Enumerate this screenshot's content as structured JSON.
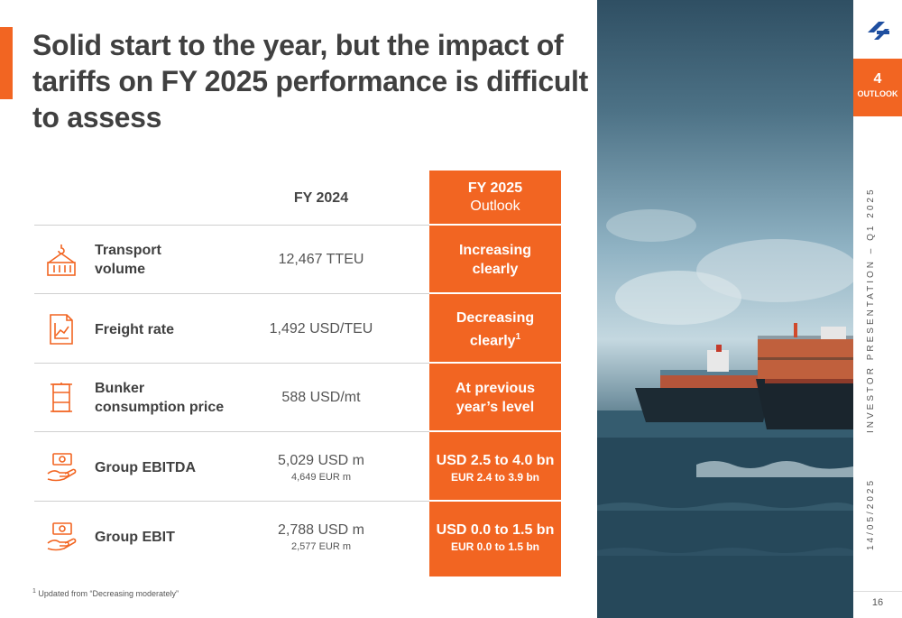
{
  "title": "Solid start to the year, but the impact of tariffs on FY 2025 performance is difficult to assess",
  "columns": {
    "fy24": "FY 2024",
    "fy25_year": "FY 2025",
    "fy25_sub": "Outlook"
  },
  "rows": [
    {
      "label_1": "Transport",
      "label_2": "volume",
      "fy24": "12,467 TTEU",
      "fy24_small": "",
      "out_1": "Increasing",
      "out_2": "clearly",
      "icon": "container-crane-icon"
    },
    {
      "label_1": "Freight rate",
      "label_2": "",
      "fy24": "1,492 USD/TEU",
      "fy24_small": "",
      "out_1": "Decreasing",
      "out_2": "clearly",
      "out_sup": "1",
      "icon": "line-chart-icon"
    },
    {
      "label_1": "Bunker",
      "label_2": "consumption price",
      "fy24": "588 USD/mt",
      "fy24_small": "",
      "out_1": "At previous",
      "out_2": "year’s level",
      "icon": "fuel-tank-icon"
    },
    {
      "label_1": "Group EBITDA",
      "label_2": "",
      "fy24": "5,029 USD m",
      "fy24_small": "4,649 EUR m",
      "out_1": "USD 2.5 to 4.0 bn",
      "out_2": "EUR 2.4 to 3.9 bn",
      "icon": "money-hand-icon"
    },
    {
      "label_1": "Group EBIT",
      "label_2": "",
      "fy24": "2,788 USD m",
      "fy24_small": "2,577 EUR m",
      "out_1": "USD 0.0 to 1.5 bn",
      "out_2": "EUR 0.0 to 1.5 bn",
      "icon": "money-hand-icon"
    }
  ],
  "footnote": {
    "mark": "1",
    "text": "Updated from “Decreasing moderately”"
  },
  "sidebar": {
    "section_number": "4",
    "section_label": "OUTLOOK",
    "presentation": "INVESTOR PRESENTATION – Q1 2025",
    "date": "14/05/2025",
    "page": "16"
  },
  "colors": {
    "accent": "#f26522",
    "logo": "#1f4fa0"
  }
}
